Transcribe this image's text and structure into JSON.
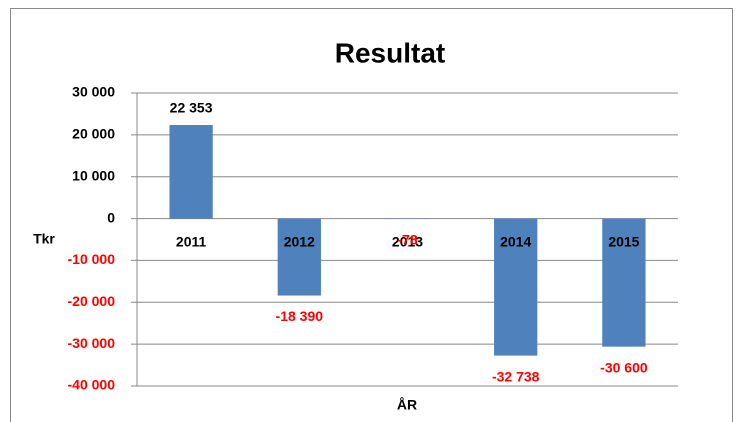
{
  "chart_data": {
    "type": "bar",
    "title": "Resultat",
    "y_label": "Tkr",
    "x_label": "ÅR",
    "categories": [
      "2011",
      "2012",
      "2013",
      "2014",
      "2015"
    ],
    "values": [
      22353,
      -18390,
      -78,
      -32738,
      -30600
    ],
    "value_labels": [
      "22 353",
      "-18 390",
      "-78",
      "-32 738",
      "-30 600"
    ],
    "color": "#4f81bd",
    "label_color": "#000000",
    "negative_label_color": "#ff0000",
    "ylim": [
      -40000,
      30000
    ],
    "yticks": [
      {
        "value": -40000,
        "label": "-40 000"
      },
      {
        "value": -30000,
        "label": "-30 000"
      },
      {
        "value": -20000,
        "label": "-20 000"
      },
      {
        "value": -10000,
        "label": "-10 000"
      },
      0,
      {
        "value": 10000,
        "label": "10 000"
      },
      {
        "value": 20000,
        "label": "20 000"
      },
      {
        "value": 30000,
        "label": "30 000"
      }
    ],
    "grid": true
  }
}
